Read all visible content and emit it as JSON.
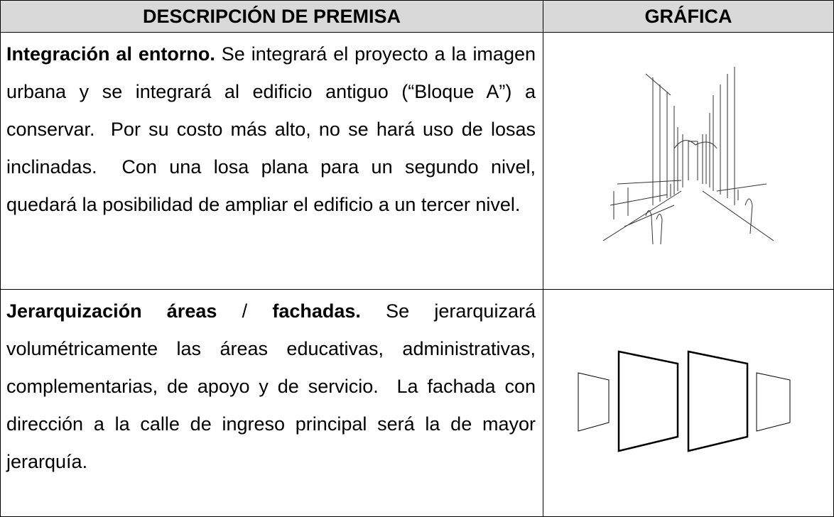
{
  "header": {
    "columns": [
      "DESCRIPCIÓN DE PREMISA",
      "GRÁFICA"
    ]
  },
  "table": {
    "rows": [
      {
        "title": "Integración al entorno.",
        "text": "Se integrará el proyecto a la imagen urbana y se integrará al edificio antiguo (“Bloque A”) a conservar.  Por su costo más alto, no se hará uso de losas inclinadas.  Con una losa plana para un segundo nivel, quedará la posibilidad de ampliar el edificio a un tercer nivel."
      },
      {
        "title": "Jerarquización áreas",
        "separator": "/",
        "title_end": "fachadas.",
        "text": "Se jerarquizará volumétricamente las áreas educativas, administrativas, complementarias, de apoyo y de servicio.  La fachada con dirección a la calle de ingreso principal será la de mayor jerarquía."
      }
    ]
  }
}
